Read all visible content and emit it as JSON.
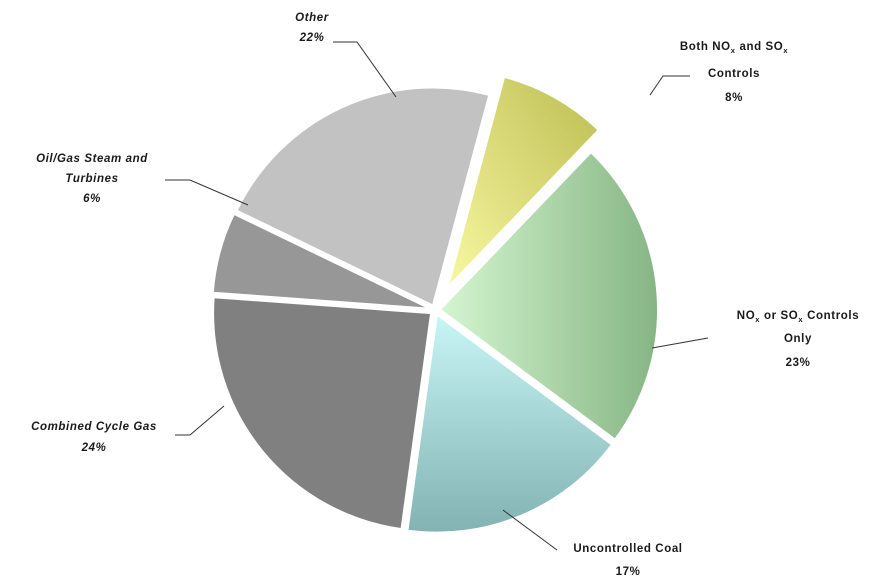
{
  "chart_data": {
    "type": "pie",
    "start_angle_deg": 15,
    "direction": "clockwise",
    "exploded": [
      "both"
    ],
    "slices": [
      {
        "key": "both",
        "value": 8,
        "color": "#e8e880",
        "labels": {
          "line1": "Both NO",
          "line2": "Controls",
          "pct": "8%"
        }
      },
      {
        "key": "nox_or_sox",
        "value": 23,
        "color": "#b4dcae",
        "labels": {
          "line1": "NO",
          "line2": "Only",
          "pct": "23%"
        }
      },
      {
        "key": "uncontrolled",
        "value": 17,
        "color": "#a4d6d6",
        "labels": {
          "name": "Uncontrolled Coal",
          "pct": "17%"
        }
      },
      {
        "key": "ccgas",
        "value": 24,
        "color": "#808080",
        "labels": {
          "name": "Combined Cycle Gas",
          "pct": "24%"
        }
      },
      {
        "key": "oilgas",
        "value": 6,
        "color": "#979797",
        "labels": {
          "line1": "Oil/Gas Steam and",
          "line2": "Turbines",
          "pct": "6%"
        }
      },
      {
        "key": "other",
        "value": 22,
        "color": "#c2c2c2",
        "labels": {
          "name": "Other",
          "pct": "22%"
        }
      }
    ],
    "label_text": {
      "both_mid": "and SO",
      "sub_x": "x",
      "nox_mid": "or SO",
      "nox_end": "Controls"
    }
  }
}
